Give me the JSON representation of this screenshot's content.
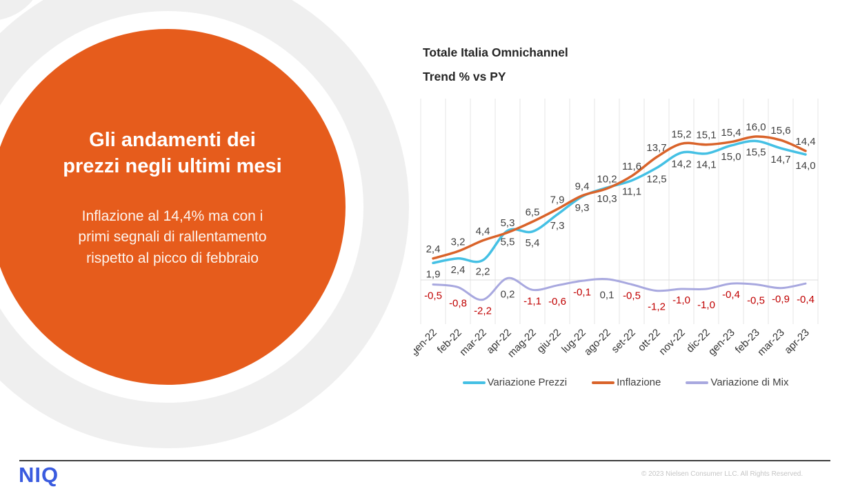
{
  "slide": {
    "title_line1": "Gli andamenti dei",
    "title_line2": "prezzi negli ultimi mesi",
    "subtitle_line1": "Inflazione al 14,4% ma con i",
    "subtitle_line2": "primi segnali di rallentamento",
    "subtitle_line3": "rispetto al picco di febbraio",
    "accent_color": "#E65C1C",
    "ring_color": "#EFEFEF"
  },
  "chart": {
    "title_line1": "Totale Italia Omnichannel",
    "title_line2": "Trend % vs PY"
  },
  "chart_data": {
    "type": "line",
    "title": "Totale Italia Omnichannel — Trend % vs PY",
    "categories": [
      "gen-22",
      "feb-22",
      "mar-22",
      "apr-22",
      "mag-22",
      "giu-22",
      "lug-22",
      "ago-22",
      "set-22",
      "ott-22",
      "nov-22",
      "dic-22",
      "gen-23",
      "feb-23",
      "mar-23",
      "apr-23"
    ],
    "series": [
      {
        "name": "Variazione Prezzi",
        "color": "#44C0E4",
        "values": [
          1.9,
          2.4,
          2.2,
          5.5,
          5.4,
          7.3,
          9.3,
          10.3,
          11.1,
          12.5,
          14.2,
          14.1,
          15.0,
          15.5,
          14.7,
          14.0
        ]
      },
      {
        "name": "Inflazione",
        "color": "#D9632A",
        "values": [
          2.4,
          3.2,
          4.4,
          5.3,
          6.5,
          7.9,
          9.4,
          10.2,
          11.6,
          13.7,
          15.2,
          15.1,
          15.4,
          16.0,
          15.6,
          14.4
        ]
      },
      {
        "name": "Variazione di Mix",
        "color": "#A8A8DF",
        "values": [
          -0.5,
          -0.8,
          -2.2,
          0.2,
          -1.1,
          -0.6,
          -0.1,
          0.1,
          -0.5,
          -1.2,
          -1.0,
          -1.0,
          -0.4,
          -0.5,
          -0.9,
          -0.4
        ]
      }
    ],
    "ylim": [
      -4,
      20
    ],
    "grid": "vertical-only",
    "legend_position": "bottom",
    "decimal_separator": ",",
    "label_color": "#3F3F3F",
    "negative_label_color": "#C00000",
    "axis_label_color": "#333333",
    "gridline_color": "#E4E4E4",
    "axis_line_color": "#DCDCDC"
  },
  "footer": {
    "logo": "NIQ",
    "logo_color": "#3A5BDF",
    "copyright": "© 2023 Nielsen Consumer LLC. All Rights Reserved."
  }
}
